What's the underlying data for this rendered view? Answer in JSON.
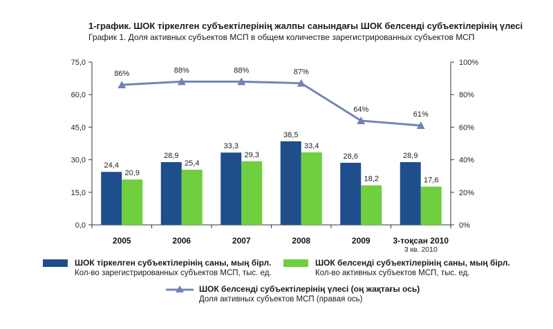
{
  "chart_data": {
    "type": "bar",
    "title": "1-график. ШОК тіркелген субъектілерінің жалпы санындағы ШОК белсенді субъектілерінің үлесі",
    "subtitle": "График 1. Доля активных субъектов МСП в общем количестве зарегистрированных субъектов МСП",
    "categories": [
      "2005",
      "2006",
      "2007",
      "2008",
      "2009",
      "3-тоқсан 2010"
    ],
    "category_sublabels": [
      "",
      "",
      "",
      "",
      "",
      "3 кв. 2010"
    ],
    "left_axis": {
      "ylim": [
        0,
        75
      ],
      "ticks": [
        "0,0",
        "15,0",
        "30,0",
        "45,0",
        "60,0",
        "75,0"
      ]
    },
    "right_axis": {
      "ylim": [
        0,
        100
      ],
      "ticks": [
        "0%",
        "20%",
        "40%",
        "60%",
        "80%",
        "100%"
      ]
    },
    "series": [
      {
        "name": "ШОК тіркелген субъектілерінің саны, мың бірл.",
        "name_ru": "Кол-во зарегистрированных субъектов МСП, тыс. ед.",
        "type": "bar",
        "color": "#1f4e8c",
        "values": [
          24.4,
          28.9,
          33.3,
          38.5,
          28.6,
          28.9
        ],
        "labels": [
          "24,4",
          "28,9",
          "33,3",
          "38,5",
          "28,6",
          "28,9"
        ]
      },
      {
        "name": "ШОК белсенді субъектілерінің саны, мың бірл.",
        "name_ru": "Кол-во активных субъектов МСП, тыс. ед.",
        "type": "bar",
        "color": "#6fcf3f",
        "values": [
          20.9,
          25.4,
          29.3,
          33.4,
          18.2,
          17.6
        ],
        "labels": [
          "20,9",
          "25,4",
          "29,3",
          "33,4",
          "18,2",
          "17,6"
        ]
      },
      {
        "name": "ШОК белсенді субъектілерінің үлесі (оң жақтағы ось)",
        "name_ru": "Доля активных субъектов МСП (правая ось)",
        "type": "line",
        "axis": "right",
        "color": "#7383b5",
        "values": [
          86,
          88,
          88,
          87,
          64,
          61
        ],
        "labels": [
          "86%",
          "88%",
          "88%",
          "87%",
          "64%",
          "61%"
        ]
      }
    ]
  }
}
